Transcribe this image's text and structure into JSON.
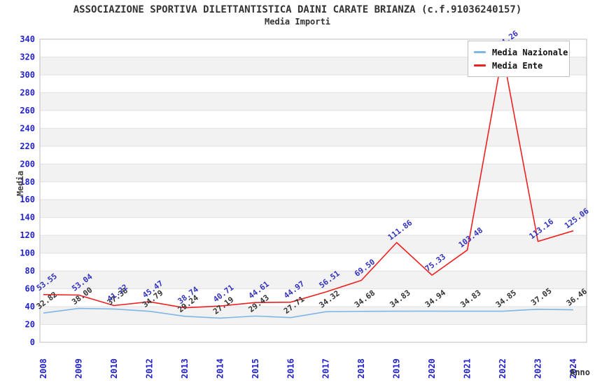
{
  "header": {
    "title": "ASSOCIAZIONE SPORTIVA DILETTANTISTICA DAINI CARATE BRIANZA (c.f.91036240157)",
    "subtitle": "Media Importi"
  },
  "legend": {
    "items": [
      {
        "label": "Media Nazionale",
        "color": "#7db7e8"
      },
      {
        "label": "Media Ente",
        "color": "#ef2020"
      }
    ]
  },
  "chart_data": {
    "type": "line",
    "title": "Media Importi",
    "xlabel": "Anno",
    "ylabel": "Media",
    "x": [
      "2008",
      "2009",
      "2010",
      "2012",
      "2013",
      "2014",
      "2015",
      "2016",
      "2017",
      "2018",
      "2019",
      "2020",
      "2021",
      "2022",
      "2023",
      "2024"
    ],
    "series": [
      {
        "name": "Media Nazionale",
        "color": "#7db7e8",
        "label_color": "#333333",
        "values": [
          32.82,
          38.0,
          37.38,
          34.79,
          29.24,
          27.19,
          29.43,
          27.71,
          34.32,
          34.68,
          34.83,
          34.94,
          34.83,
          34.85,
          37.05,
          36.46
        ],
        "labels": [
          "32.82",
          "38.00",
          "37.38",
          "34.79",
          "29.24",
          "27.19",
          "29.43",
          "27.71",
          "34.32",
          "34.68",
          "34.83",
          "34.94",
          "34.83",
          "34.85",
          "37.05",
          "36.46"
        ]
      },
      {
        "name": "Media Ente",
        "color": "#ef2020",
        "label_color": "#3232c0",
        "values": [
          53.55,
          53.04,
          41.22,
          45.47,
          38.74,
          40.71,
          44.61,
          44.97,
          56.51,
          69.5,
          111.86,
          75.33,
          103.48,
          324.26,
          113.16,
          125.06
        ],
        "labels": [
          "53.55",
          "53.04",
          "41.22",
          "45.47",
          "38.74",
          "40.71",
          "44.61",
          "44.97",
          "56.51",
          "69.50",
          "111.86",
          "75.33",
          "103.48",
          "324.26",
          "113.16",
          "125.06"
        ]
      }
    ],
    "ylim": [
      0,
      340
    ],
    "ytick_step": 20,
    "y_ticks": [
      0,
      20,
      40,
      60,
      80,
      100,
      120,
      140,
      160,
      180,
      200,
      220,
      240,
      260,
      280,
      300,
      320,
      340
    ],
    "grid": true,
    "band_fill": "#f2f2f2",
    "gridline_color": "#e2e2e2",
    "frame_color": "#bdbdbd",
    "tick_label_color": "#2222cc",
    "axis_title_color": "#444444",
    "legend_position": "top-right"
  }
}
